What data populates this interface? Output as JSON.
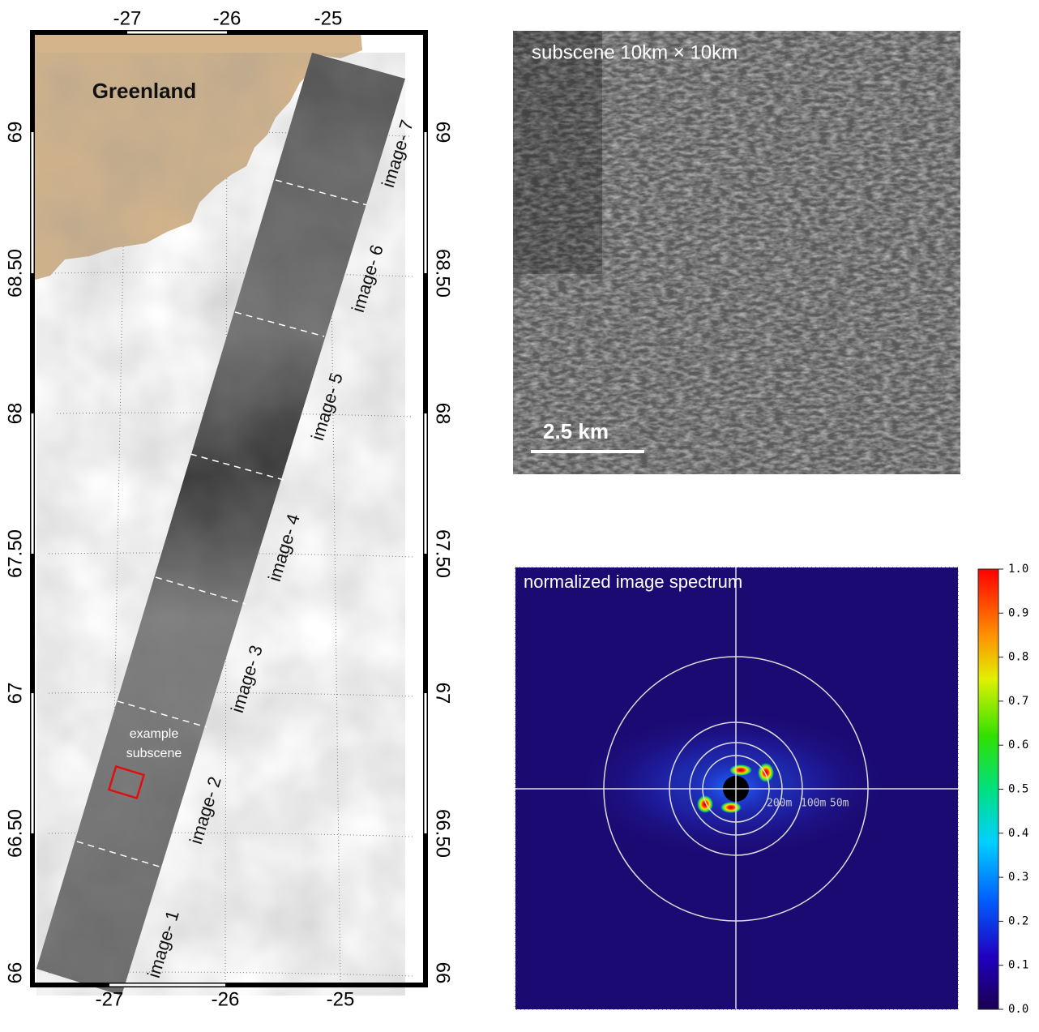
{
  "map": {
    "land_label": "Greenland",
    "top_lon_labels": [
      "-27",
      "-26",
      "-25"
    ],
    "bottom_lon_labels": [
      "-27",
      "-26",
      "-25"
    ],
    "left_lat_labels": [
      "69",
      "68.50",
      "68",
      "67.50",
      "67",
      "66.50",
      "66"
    ],
    "right_lat_labels": [
      "69",
      "68.50",
      "68",
      "67.50",
      "67",
      "66.50",
      "66"
    ],
    "strip_labels": [
      "image- 1",
      "image- 2",
      "image- 3",
      "image- 4",
      "image- 5",
      "image- 6",
      "image- 7"
    ],
    "subscene_label_lines": [
      "example",
      "subscene"
    ]
  },
  "subscene": {
    "title": "subscene 10km × 10km",
    "scale_bar": "2.5 km"
  },
  "spectrum": {
    "title": "normalized  image spectrum",
    "ring_labels": [
      "200m",
      "100m",
      "50m"
    ],
    "colorbar_ticks": [
      "0.0",
      "0.1",
      "0.2",
      "0.3",
      "0.4",
      "0.5",
      "0.6",
      "0.7",
      "0.8",
      "0.9",
      "1.0"
    ]
  }
}
